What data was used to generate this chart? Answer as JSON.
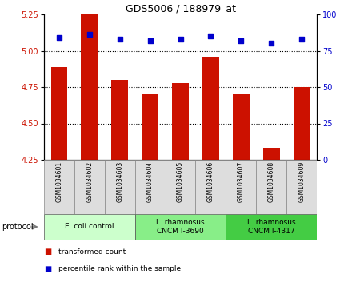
{
  "title": "GDS5006 / 188979_at",
  "samples": [
    "GSM1034601",
    "GSM1034602",
    "GSM1034603",
    "GSM1034604",
    "GSM1034605",
    "GSM1034606",
    "GSM1034607",
    "GSM1034608",
    "GSM1034609"
  ],
  "bar_values": [
    4.89,
    5.25,
    4.8,
    4.7,
    4.78,
    4.96,
    4.7,
    4.33,
    4.75
  ],
  "percentile_values": [
    84,
    86,
    83,
    82,
    83,
    85,
    82,
    80,
    83
  ],
  "bar_color": "#cc1100",
  "dot_color": "#0000cc",
  "ylim_left": [
    4.25,
    5.25
  ],
  "ylim_right": [
    0,
    100
  ],
  "yticks_left": [
    4.25,
    4.5,
    4.75,
    5.0,
    5.25
  ],
  "yticks_right": [
    0,
    25,
    50,
    75,
    100
  ],
  "hlines": [
    5.0,
    4.75,
    4.5
  ],
  "group_configs": [
    {
      "start": 0,
      "end": 2,
      "label": "E. coli control",
      "color": "#ccffcc"
    },
    {
      "start": 3,
      "end": 5,
      "label": "L. rhamnosus\nCNCM I-3690",
      "color": "#88ee88"
    },
    {
      "start": 6,
      "end": 8,
      "label": "L. rhamnosus\nCNCM I-4317",
      "color": "#44cc44"
    }
  ],
  "legend_bar_label": "transformed count",
  "legend_dot_label": "percentile rank within the sample",
  "protocol_label": "protocol",
  "sample_box_color": "#dddddd",
  "bar_width": 0.55
}
